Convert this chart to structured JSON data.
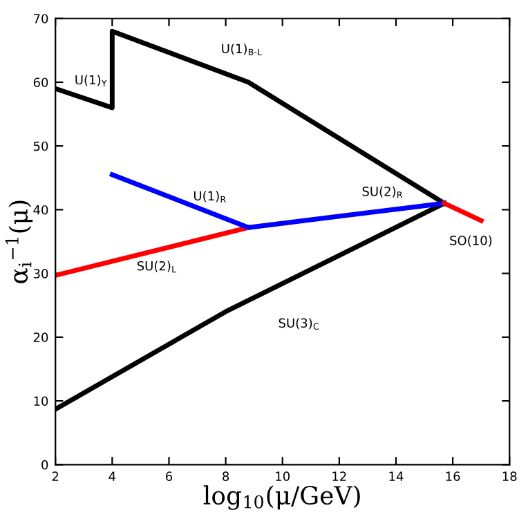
{
  "chart_data": {
    "type": "line",
    "xlabel": "log$_{10}$(μ/GeV)",
    "ylabel": "α$_{i}$$^{−1}$(μ)",
    "xlim": [
      2,
      18
    ],
    "ylim": [
      0,
      70
    ],
    "xticks": [
      2,
      4,
      6,
      8,
      10,
      12,
      14,
      16,
      18
    ],
    "yticks": [
      0,
      10,
      20,
      30,
      40,
      50,
      60,
      70
    ],
    "grid": false,
    "legend": false,
    "marker": "none",
    "line_style": "solid",
    "series": [
      {
        "color": "#000000",
        "x": [
          2,
          4,
          4,
          8.8,
          15.7
        ],
        "values": [
          59,
          56,
          68,
          60,
          41
        ]
      },
      {
        "color": "#000000",
        "x": [
          2,
          8,
          15.7
        ],
        "values": [
          8.7,
          24,
          41
        ]
      },
      {
        "color": "#ff0000",
        "x": [
          2,
          8.8
        ],
        "values": [
          29.7,
          37.2
        ]
      },
      {
        "color": "#0000ff",
        "x": [
          4,
          8.8,
          15.7
        ],
        "values": [
          45.5,
          37.2,
          41
        ]
      },
      {
        "color": "#ff0000",
        "x": [
          15.7,
          17
        ],
        "values": [
          41,
          38.3
        ]
      }
    ],
    "annotations": [
      "U(1)$_{Y}$",
      "U(1)$_{B‐L}$",
      "U(1)$_{R}$",
      "SU(2)$_{R}$",
      "SO(10)",
      "SU(2)$_{L}$",
      "SU(3)$_{C}$"
    ]
  }
}
